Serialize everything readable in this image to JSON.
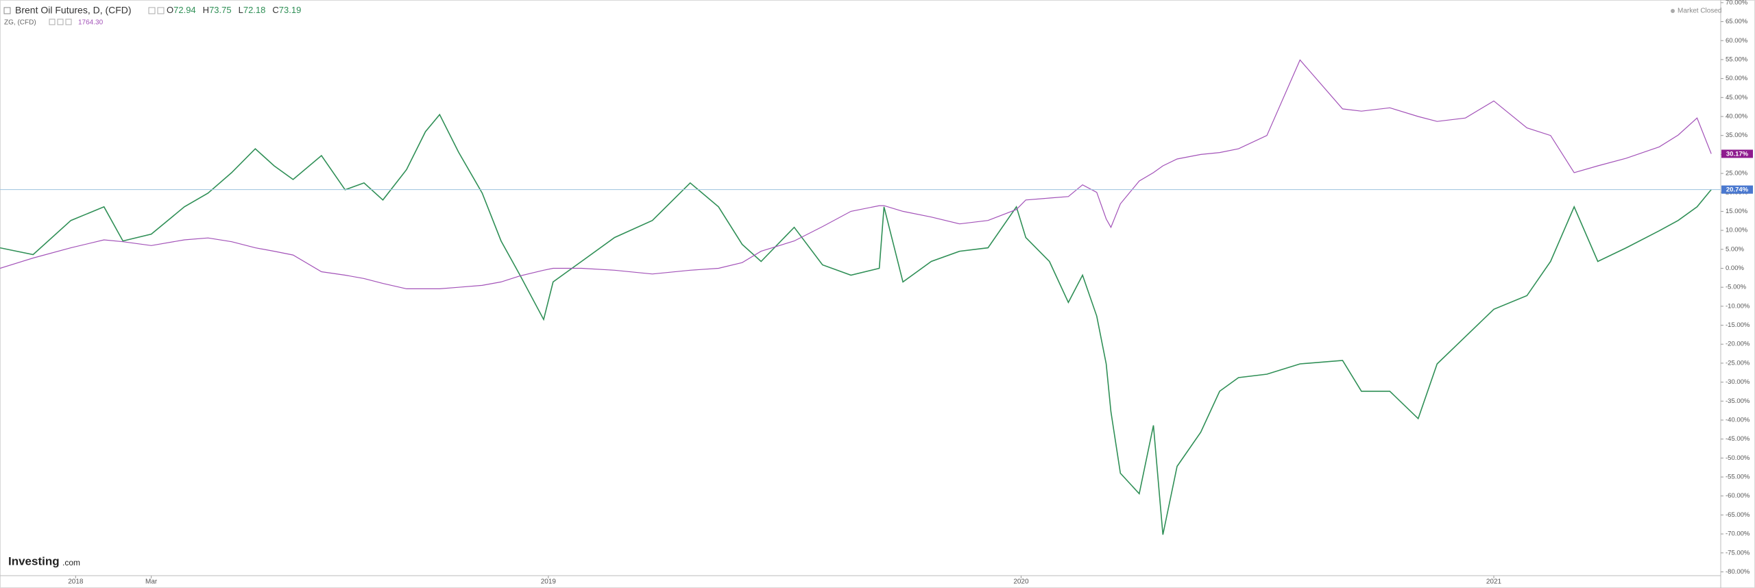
{
  "chart_data": {
    "type": "line",
    "header": {
      "title": "Brent Oil Futures, D, (CFD)",
      "ohlc": [
        {
          "label": "O",
          "value": 72.94
        },
        {
          "label": "H",
          "value": 73.75
        },
        {
          "label": "L",
          "value": 72.18
        },
        {
          "label": "C",
          "value": 73.19
        }
      ],
      "overlay_name": "ZG, (CFD)",
      "overlay_value": {
        "value": 1764.3,
        "label": "1764.30"
      },
      "status": "Market Closed"
    },
    "logo": {
      "main": "Investing",
      "suffix": ".com"
    },
    "x": [
      2017.84,
      2017.91,
      2017.99,
      2018.06,
      2018.1,
      2018.16,
      2018.23,
      2018.28,
      2018.33,
      2018.38,
      2018.42,
      2018.46,
      2018.52,
      2018.57,
      2018.61,
      2018.65,
      2018.7,
      2018.74,
      2018.77,
      2018.81,
      2018.86,
      2018.9,
      2018.94,
      2018.99,
      2019.01,
      2019.07,
      2019.14,
      2019.22,
      2019.3,
      2019.36,
      2019.41,
      2019.45,
      2019.52,
      2019.58,
      2019.64,
      2019.7,
      2019.71,
      2019.75,
      2019.81,
      2019.87,
      2019.93,
      2019.99,
      2020.01,
      2020.06,
      2020.1,
      2020.13,
      2020.16,
      2020.18,
      2020.19,
      2020.21,
      2020.25,
      2020.28,
      2020.3,
      2020.33,
      2020.38,
      2020.42,
      2020.46,
      2020.52,
      2020.59,
      2020.68,
      2020.72,
      2020.78,
      2020.84,
      2020.88,
      2020.94,
      2021.0,
      2021.07,
      2021.12,
      2021.17,
      2021.22,
      2021.28,
      2021.35,
      2021.39,
      2021.43,
      2021.46
    ],
    "series": [
      {
        "name": "Brent Oil Futures, D, (CFD)",
        "color": "#2f8f56",
        "values": [
          5.4,
          3.6,
          12.6,
          16.2,
          7.2,
          9,
          16.2,
          19.8,
          25.2,
          31.5,
          27,
          23.4,
          29.7,
          20.7,
          22.5,
          18,
          26,
          36,
          40.5,
          30.6,
          19.8,
          7.2,
          -1.8,
          -13.5,
          -3.6,
          1.8,
          8.1,
          12.6,
          22.5,
          16.2,
          6.3,
          1.8,
          10.8,
          0.9,
          -1.8,
          0,
          16.2,
          -3.6,
          1.8,
          4.5,
          5.4,
          16.2,
          8.1,
          1.8,
          -9,
          -1.8,
          -12.6,
          -25.2,
          -37.8,
          -54,
          -59.4,
          -41.4,
          -70.2,
          -52.2,
          -43.2,
          -32.4,
          -28.8,
          -27.9,
          -25.2,
          -24.3,
          -32.4,
          -32.4,
          -39.6,
          -25.2,
          -18,
          -10.8,
          -7.2,
          1.8,
          16.2,
          1.8,
          5.4,
          9.9,
          12.6,
          16.2,
          20.74
        ]
      },
      {
        "name": "ZG, (CFD)",
        "color": "#a251b8",
        "values": [
          0,
          2.7,
          5.4,
          7.5,
          7,
          6,
          7.5,
          8,
          7,
          5.4,
          4.5,
          3.5,
          -0.9,
          -1.8,
          -2.7,
          -4,
          -5.4,
          -5.4,
          -5.4,
          -5,
          -4.5,
          -3.6,
          -2,
          -0.5,
          0,
          0,
          -0.5,
          -1.5,
          -0.5,
          0,
          1.5,
          4.5,
          7.2,
          11,
          15,
          16.5,
          16.5,
          15,
          13.5,
          11.7,
          12.6,
          15.5,
          18,
          18.5,
          18.9,
          22,
          20,
          13,
          10.8,
          17,
          23,
          25.2,
          27,
          28.8,
          30,
          30.5,
          31.5,
          35,
          54.9,
          42,
          41.4,
          42.3,
          40,
          38.7,
          39.6,
          44.1,
          37,
          35,
          25.2,
          27,
          29,
          32,
          35.1,
          39.6,
          30.17
        ]
      }
    ],
    "markers": [
      {
        "value": 30.17,
        "label": "30.17%",
        "color": "#8e1b8e"
      },
      {
        "value": 20.74,
        "label": "20.74%",
        "color": "#4a78cf"
      }
    ],
    "xlim": [
      2017.84,
      2021.48
    ],
    "xticks": [
      {
        "value": 2018,
        "label": "2018"
      },
      {
        "value": 2018.16,
        "label": "Mar"
      },
      {
        "value": 2019,
        "label": "2019"
      },
      {
        "value": 2020,
        "label": "2020"
      },
      {
        "value": 2021,
        "label": "2021"
      }
    ],
    "ylim": [
      -81,
      70.7
    ],
    "yticks": [
      {
        "value": 70,
        "label": "70.00%"
      },
      {
        "value": 65,
        "label": "65.00%"
      },
      {
        "value": 60,
        "label": "60.00%"
      },
      {
        "value": 55,
        "label": "55.00%"
      },
      {
        "value": 50,
        "label": "50.00%"
      },
      {
        "value": 45,
        "label": "45.00%"
      },
      {
        "value": 40,
        "label": "40.00%"
      },
      {
        "value": 35,
        "label": "35.00%"
      },
      {
        "value": 30,
        "label": "30.00%"
      },
      {
        "value": 25,
        "label": "25.00%"
      },
      {
        "value": 20,
        "label": "20.00%"
      },
      {
        "value": 15,
        "label": "15.00%"
      },
      {
        "value": 10,
        "label": "10.00%"
      },
      {
        "value": 5,
        "label": "5.00%"
      },
      {
        "value": 0,
        "label": "0.00%"
      },
      {
        "value": -5,
        "label": "-5.00%"
      },
      {
        "value": -10,
        "label": "-10.00%"
      },
      {
        "value": -15,
        "label": "-15.00%"
      },
      {
        "value": -20,
        "label": "-20.00%"
      },
      {
        "value": -25,
        "label": "-25.00%"
      },
      {
        "value": -30,
        "label": "-30.00%"
      },
      {
        "value": -35,
        "label": "-35.00%"
      },
      {
        "value": -40,
        "label": "-40.00%"
      },
      {
        "value": -45,
        "label": "-45.00%"
      },
      {
        "value": -50,
        "label": "-50.00%"
      },
      {
        "value": -55,
        "label": "-55.00%"
      },
      {
        "value": -60,
        "label": "-60.00%"
      },
      {
        "value": -65,
        "label": "-65.00%"
      },
      {
        "value": -70,
        "label": "-70.00%"
      },
      {
        "value": -75,
        "label": "-75.00%"
      },
      {
        "value": -80,
        "label": "-80.00%"
      }
    ],
    "grid": false
  }
}
